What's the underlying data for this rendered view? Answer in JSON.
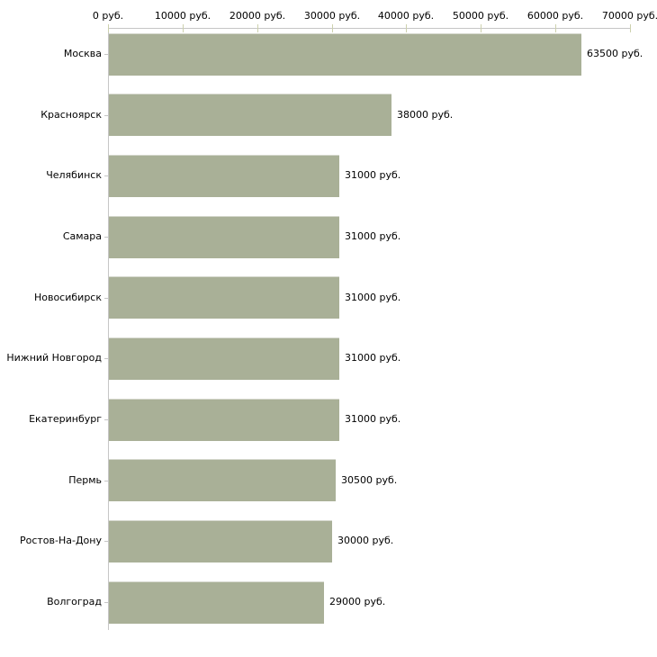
{
  "chart_data": {
    "type": "bar",
    "orientation": "horizontal",
    "title": "",
    "xlabel": "",
    "ylabel": "",
    "unit_suffix": " руб.",
    "categories": [
      "Москва",
      "Красноярск",
      "Челябинск",
      "Самара",
      "Новосибирск",
      "Нижний Новгород",
      "Екатеринбург",
      "Пермь",
      "Ростов-На-Дону",
      "Волгоград"
    ],
    "values": [
      63500,
      38000,
      31000,
      31000,
      31000,
      31000,
      31000,
      30500,
      30000,
      29000
    ],
    "value_labels": [
      "63500 руб.",
      "38000 руб.",
      "31000 руб.",
      "31000 руб.",
      "31000 руб.",
      "31000 руб.",
      "31000 руб.",
      "30500 руб.",
      "30000 руб.",
      "29000 руб."
    ],
    "x_ticks": [
      0,
      10000,
      20000,
      30000,
      40000,
      50000,
      60000,
      70000
    ],
    "x_tick_labels": [
      "0 руб.",
      "10000 руб.",
      "20000 руб.",
      "30000 руб.",
      "40000 руб.",
      "50000 руб.",
      "60000 руб.",
      "70000 руб."
    ],
    "xlim": [
      0,
      70000
    ],
    "x_axis_position": "top",
    "grid": false,
    "legend": false
  },
  "colors": {
    "background": "#ffffff",
    "bar_fill": "#a9b097",
    "bar_top_edge": "#d5d7cd",
    "axis_line": "#c6c6c6",
    "tick_mark": "#cdd1ae",
    "text": "#000000"
  }
}
